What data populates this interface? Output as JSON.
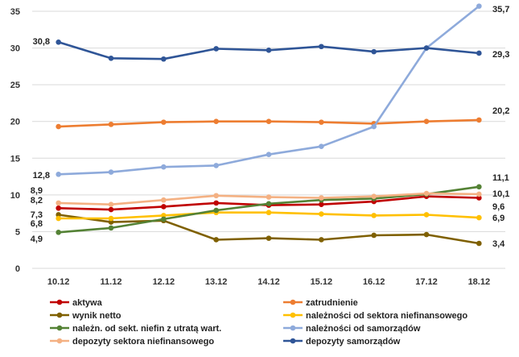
{
  "chart_data": {
    "type": "line",
    "title": "",
    "xlabel": "",
    "ylabel": "",
    "ylim": [
      0,
      35
    ],
    "yticks": [
      0,
      5,
      10,
      15,
      20,
      25,
      30,
      35
    ],
    "ytick_labels": [
      "0",
      "5",
      "10",
      "15",
      "20",
      "25",
      "30",
      "35"
    ],
    "grid": "horizontal",
    "legend_position": "bottom",
    "categories": [
      "10.12",
      "11.12",
      "12.12",
      "13.12",
      "14.12",
      "15.12",
      "16.12",
      "17.12",
      "18.12"
    ],
    "series": [
      {
        "name": "aktywa",
        "color": "#c00000",
        "values": [
          8.2,
          8.0,
          8.4,
          8.9,
          8.6,
          8.7,
          9.1,
          9.8,
          9.6
        ]
      },
      {
        "name": "zatrudnienie",
        "color": "#ed7d31",
        "values": [
          19.3,
          19.6,
          19.9,
          20.0,
          20.0,
          19.9,
          19.7,
          20.0,
          20.2
        ]
      },
      {
        "name": "wynik netto",
        "color": "#7f6000",
        "values": [
          7.3,
          6.3,
          6.5,
          3.9,
          4.1,
          3.9,
          4.5,
          4.6,
          3.4
        ]
      },
      {
        "name": "należności od sektora niefinansowego",
        "color": "#ffc000",
        "values": [
          6.8,
          6.8,
          7.2,
          7.6,
          7.6,
          7.4,
          7.2,
          7.3,
          6.9
        ]
      },
      {
        "name": "należn. od sekt. niefin z utratą wart.",
        "color": "#548235",
        "values": [
          4.9,
          5.5,
          6.7,
          7.9,
          8.8,
          9.3,
          9.5,
          10.1,
          11.1
        ]
      },
      {
        "name": "należności od samorządów",
        "color": "#8eaadb",
        "values": [
          12.8,
          13.1,
          13.8,
          14.0,
          15.5,
          16.6,
          19.3,
          30.0,
          35.7
        ]
      },
      {
        "name": "depozyty sektora niefinansowego",
        "color": "#f4b183",
        "values": [
          8.9,
          8.7,
          9.3,
          9.9,
          9.7,
          9.6,
          9.8,
          10.2,
          10.1
        ]
      },
      {
        "name": "depozyty samorządów",
        "color": "#2f5597",
        "values": [
          30.8,
          28.6,
          28.5,
          29.9,
          29.7,
          30.2,
          29.5,
          30.0,
          29.3
        ]
      }
    ],
    "data_labels": [
      {
        "id": "lbl-left-dep-sam",
        "text": "30,8",
        "series": "depozyty samorządów",
        "point": 0
      },
      {
        "id": "lbl-left-sam",
        "text": "12,8",
        "series": "należności od samorządów",
        "point": 0
      },
      {
        "id": "lbl-left-dep-nf",
        "text": "8,9",
        "series": "depozyty sektora niefinansowego",
        "point": 0
      },
      {
        "id": "lbl-left-akt",
        "text": "8,2",
        "series": "aktywa",
        "point": 0
      },
      {
        "id": "lbl-left-wyn",
        "text": "7,3",
        "series": "wynik netto",
        "point": 0
      },
      {
        "id": "lbl-left-nal",
        "text": "6,8",
        "series": "należności od sektora niefinansowego",
        "point": 0
      },
      {
        "id": "lbl-left-utr",
        "text": "4,9",
        "series": "należn. od sekt. niefin z utratą wart.",
        "point": 0
      },
      {
        "id": "lbl-right-sam",
        "text": "35,7",
        "series": "należności od samorządów",
        "point": 8
      },
      {
        "id": "lbl-right-dep-sam",
        "text": "29,3",
        "series": "depozyty samorządów",
        "point": 8
      },
      {
        "id": "lbl-right-zatr",
        "text": "20,2",
        "series": "zatrudnienie",
        "point": 8
      },
      {
        "id": "lbl-right-utr",
        "text": "11,1",
        "series": "należn. od sekt. niefin z utratą wart.",
        "point": 8
      },
      {
        "id": "lbl-right-dep-nf",
        "text": "10,1",
        "series": "depozyty sektora niefinansowego",
        "point": 8
      },
      {
        "id": "lbl-right-akt",
        "text": "9,6",
        "series": "aktywa",
        "point": 8
      },
      {
        "id": "lbl-right-nal",
        "text": "6,9",
        "series": "należności od sektora niefinansowego",
        "point": 8
      },
      {
        "id": "lbl-right-wyn",
        "text": "3,4",
        "series": "wynik netto",
        "point": 8
      }
    ]
  }
}
